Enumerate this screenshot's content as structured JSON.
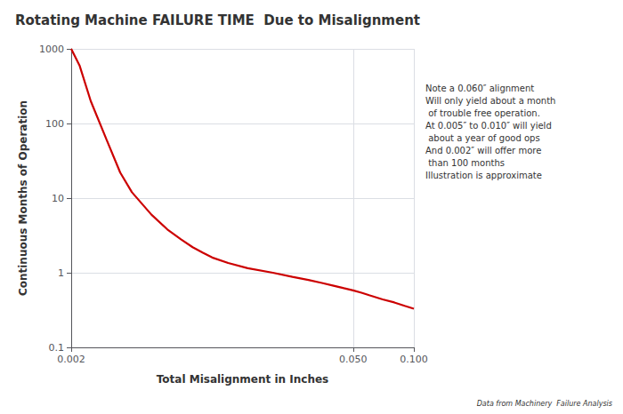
{
  "chart_data": {
    "type": "line",
    "title": "Rotating Machine FAILURE TIME  Due to Misalignment",
    "x_label": "Total Misalignment in Inches",
    "y_label": "Continuous Months of Operation",
    "annotation": "Note a 0.060″ alignment\nWill only yield about a month\n of trouble free operation.\nAt 0.005″ to 0.010″ will yield\n about a year of good ops\nAnd 0.002″ will offer more\n than 100 months\nIllustration is approximate",
    "footnote": "Data from Machinery  Failure Analysis",
    "x": [
      0.002,
      0.0022,
      0.0025,
      0.003,
      0.0035,
      0.004,
      0.005,
      0.006,
      0.007,
      0.008,
      0.009,
      0.01,
      0.012,
      0.015,
      0.02,
      0.025,
      0.03,
      0.035,
      0.04,
      0.045,
      0.05,
      0.055,
      0.06,
      0.07,
      0.08,
      0.09,
      0.1
    ],
    "values": [
      1000,
      600,
      200,
      60,
      22,
      12,
      6.0,
      3.8,
      2.8,
      2.2,
      1.85,
      1.6,
      1.35,
      1.15,
      1.0,
      0.88,
      0.8,
      0.73,
      0.67,
      0.62,
      0.58,
      0.54,
      0.5,
      0.44,
      0.4,
      0.36,
      0.33
    ],
    "color": "#cc0000",
    "log": true,
    "xlim": [
      0.002,
      0.1
    ],
    "ylim": [
      0.1,
      1000
    ],
    "xticks": [
      0.002,
      {
        "value": 0.05,
        "label": "0.050"
      },
      {
        "value": 0.1,
        "label": "0.100"
      }
    ],
    "yticks": [
      0.1,
      1,
      10,
      100,
      1000
    ],
    "grid": true
  }
}
